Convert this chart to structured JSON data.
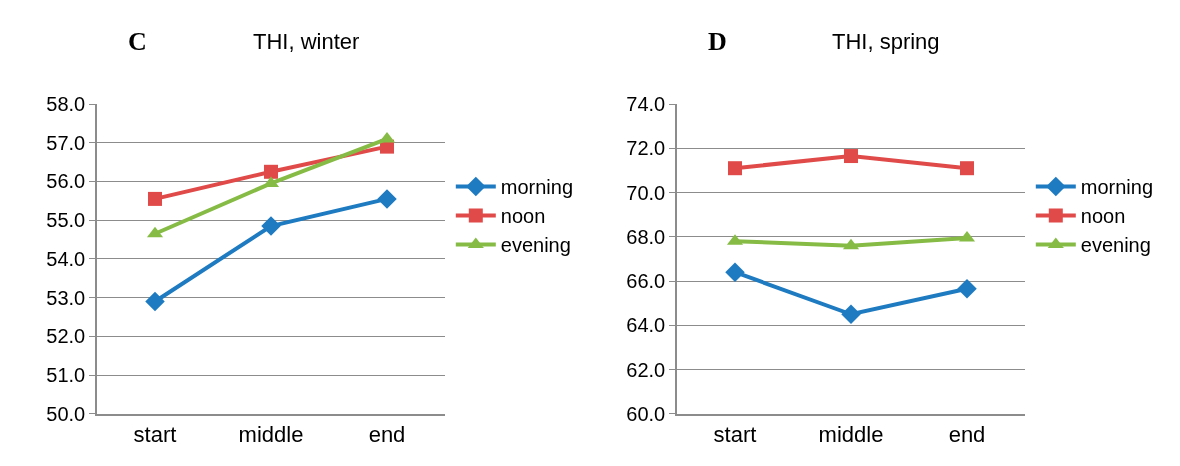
{
  "chart_data": [
    {
      "type": "line",
      "title": "THI, winter",
      "annotations": [
        "C"
      ],
      "categories": [
        "start",
        "middle",
        "end"
      ],
      "ylim": [
        50,
        58
      ],
      "yticks": [
        {
          "value": 50,
          "label": "50.0"
        },
        {
          "value": 51,
          "label": "51.0"
        },
        {
          "value": 52,
          "label": "52.0"
        },
        {
          "value": 53,
          "label": "53.0"
        },
        {
          "value": 54,
          "label": "54.0"
        },
        {
          "value": 55,
          "label": "55.0"
        },
        {
          "value": 56,
          "label": "56.0"
        },
        {
          "value": 57,
          "label": "57.0"
        },
        {
          "value": 58,
          "label": "58.0"
        }
      ],
      "grid": "y",
      "legend": "right",
      "series": [
        {
          "name": "morning",
          "color": "#1f7bc1",
          "marker": "diamond",
          "values": [
            52.9,
            54.85,
            55.55
          ]
        },
        {
          "name": "noon",
          "color": "#e04b49",
          "marker": "square",
          "values": [
            55.55,
            56.25,
            56.9
          ]
        },
        {
          "name": "evening",
          "color": "#86bc45",
          "marker": "triangle",
          "values": [
            54.65,
            55.95,
            57.1
          ]
        }
      ]
    },
    {
      "type": "line",
      "title": "THI, spring",
      "annotations": [
        "D"
      ],
      "categories": [
        "start",
        "middle",
        "end"
      ],
      "ylim": [
        60,
        74
      ],
      "yticks": [
        {
          "value": 60,
          "label": "60.0"
        },
        {
          "value": 62,
          "label": "62.0"
        },
        {
          "value": 64,
          "label": "64.0"
        },
        {
          "value": 66,
          "label": "66.0"
        },
        {
          "value": 68,
          "label": "68.0"
        },
        {
          "value": 70,
          "label": "70.0"
        },
        {
          "value": 72,
          "label": "72.0"
        },
        {
          "value": 74,
          "label": "74.0"
        }
      ],
      "grid": "y",
      "legend": "right",
      "series": [
        {
          "name": "morning",
          "color": "#1f7bc1",
          "marker": "diamond",
          "values": [
            66.4,
            64.5,
            65.65
          ]
        },
        {
          "name": "noon",
          "color": "#e04b49",
          "marker": "square",
          "values": [
            71.1,
            71.65,
            71.1
          ]
        },
        {
          "name": "evening",
          "color": "#86bc45",
          "marker": "triangle",
          "values": [
            67.8,
            67.6,
            67.95
          ]
        }
      ]
    }
  ]
}
